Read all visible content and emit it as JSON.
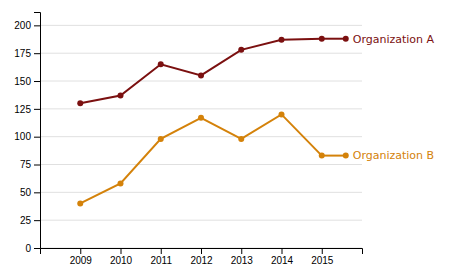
{
  "chart_data": {
    "type": "line",
    "x": [
      2009,
      2010,
      2011,
      2012,
      2013,
      2014,
      2015
    ],
    "xlim": [
      2008,
      2016
    ],
    "xticks": [
      2009,
      2010,
      2011,
      2012,
      2013,
      2014,
      2015
    ],
    "ylim": [
      0,
      212
    ],
    "yticks": [
      0,
      25,
      50,
      75,
      100,
      125,
      150,
      175,
      200
    ],
    "grid": true,
    "marker": "circle",
    "series": [
      {
        "name": "Organization A",
        "color": "#7B1010",
        "values": [
          130,
          137,
          165,
          155,
          178,
          187,
          188
        ]
      },
      {
        "name": "Organization B",
        "color": "#D4820A",
        "values": [
          40,
          58,
          98,
          117,
          98,
          120,
          83
        ]
      }
    ]
  }
}
